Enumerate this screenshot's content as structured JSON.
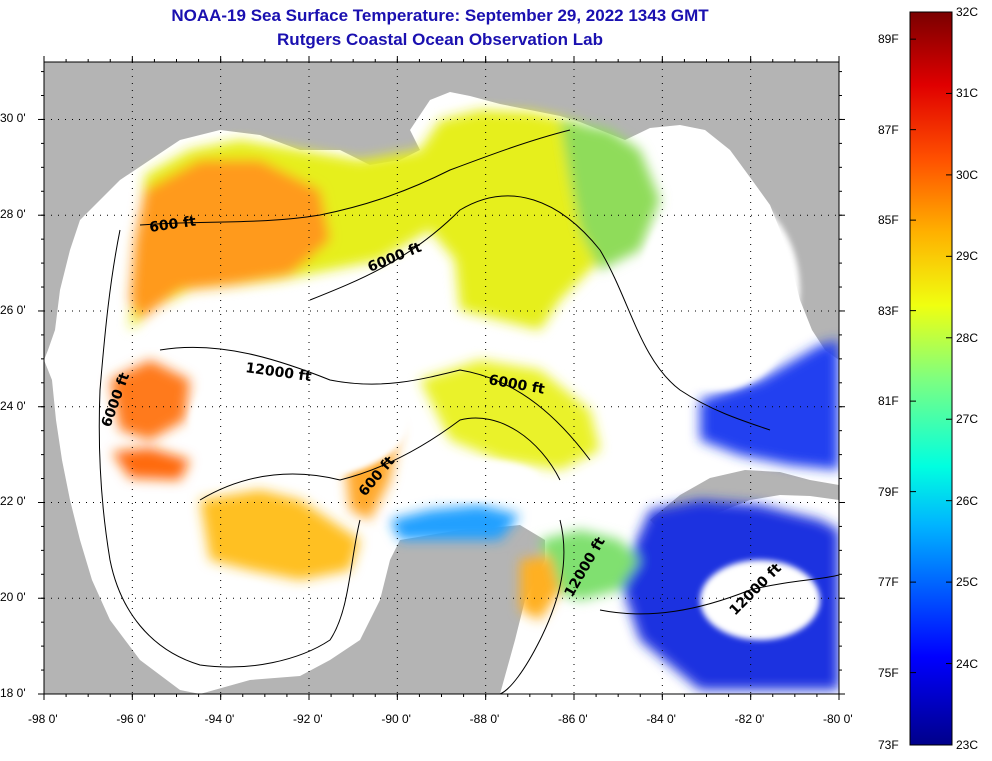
{
  "title": {
    "line1": "NOAA-19 Sea Surface Temperature:  September 29, 2022 1343 GMT",
    "line2": "Rutgers Coastal Ocean Observation Lab"
  },
  "map": {
    "lon_ticks": [
      "-98 0'",
      "-96 0'",
      "-94 0'",
      "-92 0'",
      "-90 0'",
      "-88 0'",
      "-86 0'",
      "-84 0'",
      "-82 0'",
      "-80 0'"
    ],
    "lat_ticks": [
      "30 0'",
      "28 0'",
      "26 0'",
      "24 0'",
      "22 0'",
      "20 0'",
      "18 0'"
    ],
    "lon_range": [
      -98,
      -80
    ],
    "lat_range": [
      18,
      31.2
    ],
    "contour_labels": [
      "600 ft",
      "6000 ft",
      "12000 ft",
      "6000 ft",
      "6000 ft",
      "600 ft",
      "12000 ft",
      "12000 ft"
    ]
  },
  "colorbar": {
    "fahrenheit": [
      "89F",
      "87F",
      "85F",
      "83F",
      "81F",
      "79F",
      "77F",
      "75F",
      "73F"
    ],
    "celsius": [
      "32C",
      "31C",
      "30C",
      "29C",
      "28C",
      "27C",
      "26C",
      "25C",
      "24C",
      "23C"
    ]
  },
  "colors": {
    "land": "#b4b4b4",
    "cloud": "#ffffff",
    "title": "#1a10b0"
  }
}
